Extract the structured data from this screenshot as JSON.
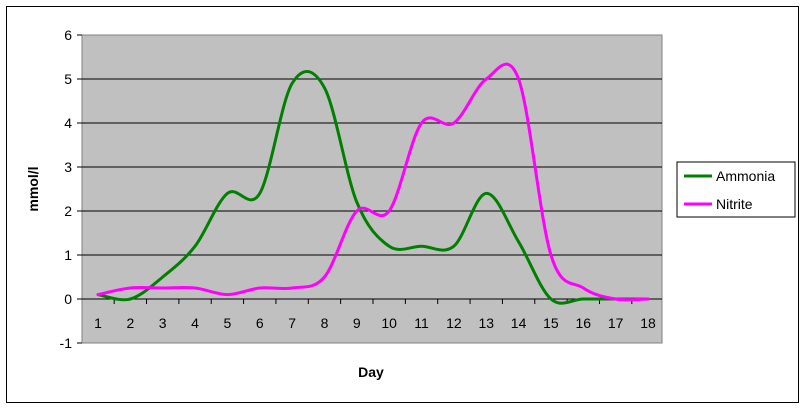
{
  "chart_data": {
    "type": "line",
    "title": "",
    "xlabel": "Day",
    "ylabel": "mmol/l",
    "x": [
      1,
      2,
      3,
      4,
      5,
      6,
      7,
      8,
      9,
      10,
      11,
      12,
      13,
      14,
      15,
      16,
      17,
      18
    ],
    "xlim": [
      1,
      18
    ],
    "ylim": [
      -1,
      6
    ],
    "yticks": [
      -1,
      0,
      1,
      2,
      3,
      4,
      5,
      6
    ],
    "grid": true,
    "legend_position": "right",
    "background_color": "#c0c0c0",
    "series": [
      {
        "name": "Ammonia",
        "color": "#008000",
        "values": [
          0.1,
          0.0,
          0.5,
          1.2,
          2.4,
          2.4,
          4.9,
          4.8,
          2.2,
          1.2,
          1.2,
          1.2,
          2.4,
          1.3,
          0.0,
          0.0,
          0.0,
          0.0
        ]
      },
      {
        "name": "Nitrite",
        "color": "#ff00ff",
        "values": [
          0.1,
          0.25,
          0.25,
          0.25,
          0.1,
          0.25,
          0.25,
          0.5,
          2.0,
          2.0,
          4.0,
          4.0,
          5.0,
          5.0,
          1.0,
          0.25,
          0.0,
          0.0
        ]
      }
    ]
  }
}
